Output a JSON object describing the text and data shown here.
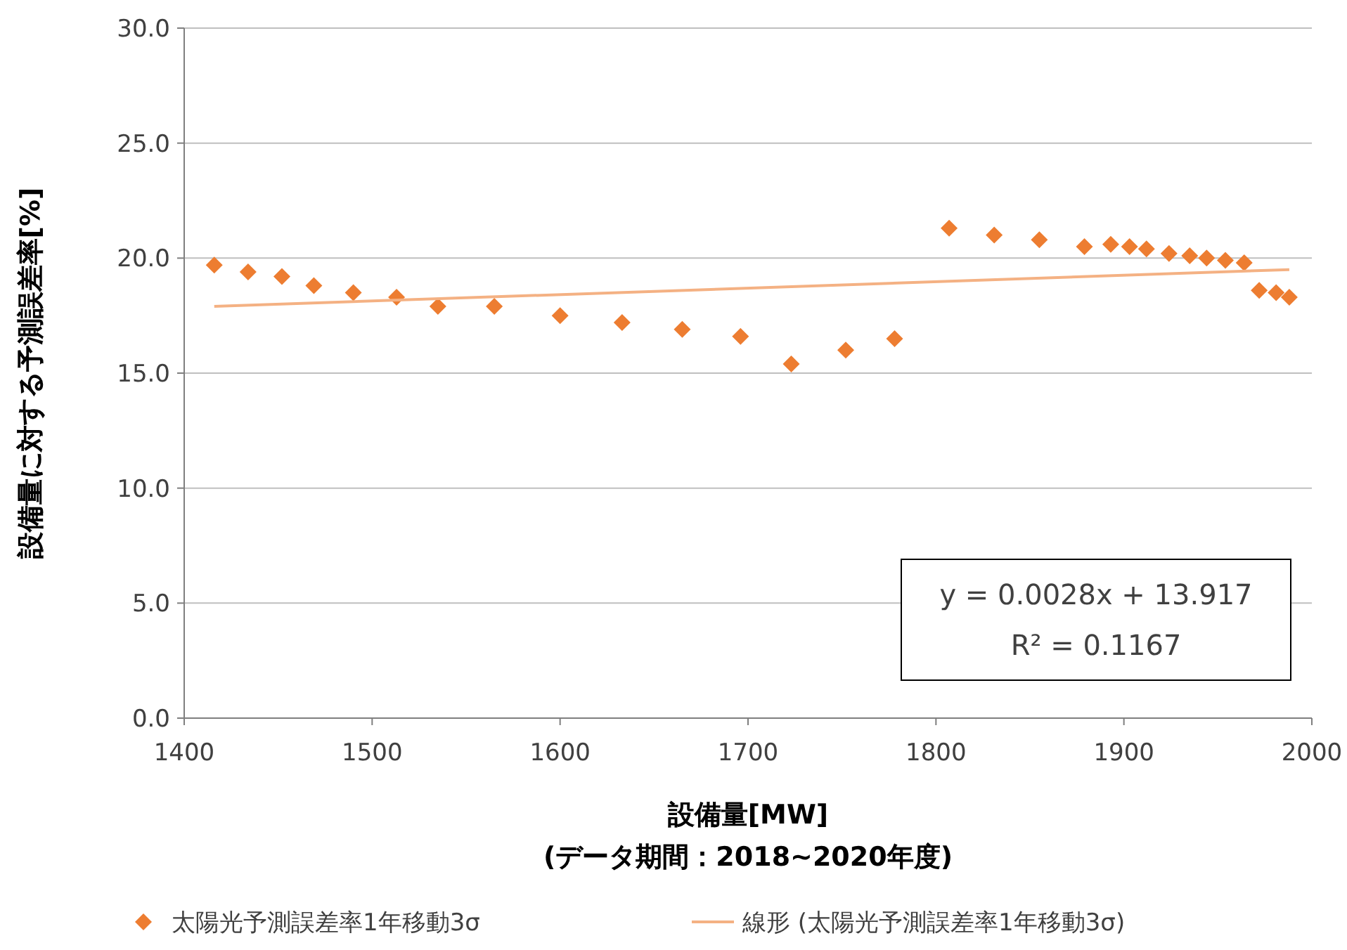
{
  "chart_data": {
    "type": "scatter",
    "ylabel": "設備量に対する予測誤差率[%]",
    "xlabel": "設備量[MW]\n(データ期間：2018~2020年度)",
    "xlim": [
      1400,
      2000
    ],
    "xticks": [
      1400,
      1500,
      1600,
      1700,
      1800,
      1900,
      2000
    ],
    "ylim": [
      0,
      30
    ],
    "yticks": [
      {
        "value": 0,
        "label": "0.0"
      },
      {
        "value": 5,
        "label": "5.0"
      },
      {
        "value": 10,
        "label": "10.0"
      },
      {
        "value": 15,
        "label": "15.0"
      },
      {
        "value": 20,
        "label": "20.0"
      },
      {
        "value": 25,
        "label": "25.0"
      },
      {
        "value": 30,
        "label": "30.0"
      }
    ],
    "grid": "y",
    "legend": "bottom",
    "annotations": [
      "y = 0.0028x + 13.917",
      "R² = 0.1167"
    ],
    "series": [
      {
        "name": "太陽光予測誤差率1年移動3σ",
        "marker": "diamond",
        "color": "#ed7d31",
        "x": [
          1416,
          1434,
          1452,
          1469,
          1490,
          1513,
          1535,
          1565,
          1600,
          1633,
          1665,
          1696,
          1723,
          1752,
          1778,
          1807,
          1831,
          1855,
          1879,
          1893,
          1903,
          1912,
          1924,
          1935,
          1944,
          1954,
          1964,
          1972,
          1981,
          1988
        ],
        "values": [
          19.7,
          19.4,
          19.2,
          18.8,
          18.5,
          18.3,
          17.9,
          17.9,
          17.5,
          17.2,
          16.9,
          16.6,
          15.4,
          16.0,
          16.5,
          21.3,
          21.0,
          20.8,
          20.5,
          20.6,
          20.5,
          20.4,
          20.2,
          20.1,
          20.0,
          19.9,
          19.8,
          18.6,
          18.5,
          18.3
        ]
      },
      {
        "name": "線形 (太陽光予測誤差率1年移動3σ)",
        "type": "line",
        "marker": "none",
        "color": "#f4b183",
        "x": [
          1416,
          1988
        ],
        "values": [
          17.9,
          19.5
        ]
      }
    ]
  }
}
